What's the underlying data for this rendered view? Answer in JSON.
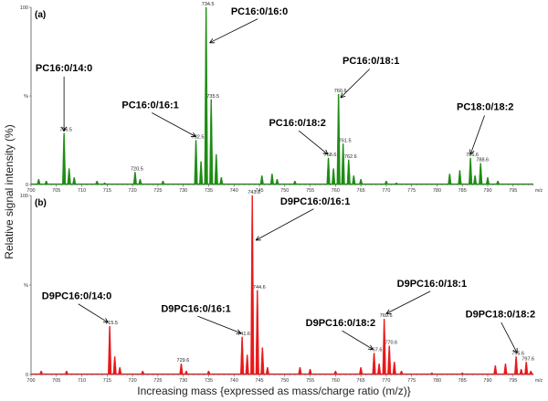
{
  "ylabel": "Relative signal intensity (%)",
  "xlabel": "Increasing mass {expressed as mass/charge ratio (m/z)}",
  "chart_data": [
    {
      "type": "line",
      "panel": "(a)",
      "color": "#1e8c14",
      "xlim": [
        700,
        799
      ],
      "ylim": [
        0,
        100
      ],
      "x_ticks": [
        700,
        705,
        710,
        715,
        720,
        725,
        730,
        735,
        740,
        745,
        750,
        755,
        760,
        765,
        770,
        775,
        780,
        785,
        790,
        795
      ],
      "y_ticks": [
        "0",
        "%",
        "100"
      ],
      "x_unit": "m/z",
      "peaks": [
        {
          "x": 701.5,
          "y": 3
        },
        {
          "x": 703.0,
          "y": 2
        },
        {
          "x": 706.5,
          "y": 29
        },
        {
          "x": 707.5,
          "y": 9
        },
        {
          "x": 708.5,
          "y": 4
        },
        {
          "x": 713.0,
          "y": 2
        },
        {
          "x": 714.5,
          "y": 1
        },
        {
          "x": 720.5,
          "y": 7
        },
        {
          "x": 721.5,
          "y": 3
        },
        {
          "x": 726.0,
          "y": 2
        },
        {
          "x": 732.5,
          "y": 25
        },
        {
          "x": 733.5,
          "y": 13
        },
        {
          "x": 734.5,
          "y": 100
        },
        {
          "x": 735.5,
          "y": 48
        },
        {
          "x": 736.5,
          "y": 17
        },
        {
          "x": 737.5,
          "y": 4
        },
        {
          "x": 745.5,
          "y": 5
        },
        {
          "x": 747.5,
          "y": 6
        },
        {
          "x": 748.5,
          "y": 3
        },
        {
          "x": 752.0,
          "y": 2
        },
        {
          "x": 758.6,
          "y": 15
        },
        {
          "x": 759.6,
          "y": 9
        },
        {
          "x": 760.6,
          "y": 51
        },
        {
          "x": 761.5,
          "y": 23
        },
        {
          "x": 762.6,
          "y": 14
        },
        {
          "x": 763.6,
          "y": 5
        },
        {
          "x": 765.0,
          "y": 3
        },
        {
          "x": 770.0,
          "y": 2
        },
        {
          "x": 772.0,
          "y": 1
        },
        {
          "x": 782.5,
          "y": 6
        },
        {
          "x": 784.5,
          "y": 8
        },
        {
          "x": 786.6,
          "y": 15
        },
        {
          "x": 787.5,
          "y": 5
        },
        {
          "x": 788.6,
          "y": 12
        },
        {
          "x": 790.0,
          "y": 4
        },
        {
          "x": 792.0,
          "y": 2
        }
      ],
      "peak_labels": [
        {
          "x": 706.5,
          "y": 29,
          "text": "706.5"
        },
        {
          "x": 720.5,
          "y": 7,
          "text": "720.5"
        },
        {
          "x": 732.5,
          "y": 25,
          "text": "732.5"
        },
        {
          "x": 734.5,
          "y": 100,
          "text": "734.5"
        },
        {
          "x": 735.5,
          "y": 48,
          "text": "735.5"
        },
        {
          "x": 758.6,
          "y": 15,
          "text": "758.6"
        },
        {
          "x": 760.6,
          "y": 51,
          "text": "760.6"
        },
        {
          "x": 761.5,
          "y": 23,
          "text": "761.5"
        },
        {
          "x": 762.6,
          "y": 14,
          "text": "762.6"
        },
        {
          "x": 786.6,
          "y": 15,
          "text": "786.6"
        },
        {
          "x": 788.6,
          "y": 12,
          "text": "788.6"
        }
      ],
      "annotations": [
        {
          "text": "PC16:0/14:0",
          "target_x": 706.5,
          "target_y": 30,
          "label_x": 706.5,
          "label_y": 64
        },
        {
          "text": "PC16:0/16:1",
          "target_x": 732.5,
          "target_y": 27,
          "label_x": 723.5,
          "label_y": 43
        },
        {
          "text": "PC16:0/16:0",
          "target_x": 735.2,
          "target_y": 80,
          "label_x": 745.0,
          "label_y": 96
        },
        {
          "text": "PC16:0/18:2",
          "target_x": 758.5,
          "target_y": 17,
          "label_x": 752.5,
          "label_y": 33
        },
        {
          "text": "PC16:0/18:1",
          "target_x": 761.0,
          "target_y": 49,
          "label_x": 767.0,
          "label_y": 68
        },
        {
          "text": "PC18:0/18:2",
          "target_x": 786.6,
          "target_y": 17,
          "label_x": 789.5,
          "label_y": 42
        }
      ]
    },
    {
      "type": "line",
      "panel": "(b)",
      "color": "#e8181a",
      "xlim": [
        700,
        799
      ],
      "ylim": [
        0,
        100
      ],
      "x_ticks": [
        700,
        705,
        710,
        715,
        720,
        725,
        730,
        735,
        740,
        745,
        750,
        755,
        760,
        765,
        770,
        775,
        780,
        785,
        790,
        795
      ],
      "y_ticks": [
        "0",
        "%",
        "100"
      ],
      "x_unit": "m/z",
      "peaks": [
        {
          "x": 702.0,
          "y": 2
        },
        {
          "x": 707.0,
          "y": 2
        },
        {
          "x": 715.5,
          "y": 27
        },
        {
          "x": 716.5,
          "y": 10
        },
        {
          "x": 717.5,
          "y": 4
        },
        {
          "x": 722.0,
          "y": 2
        },
        {
          "x": 729.6,
          "y": 6
        },
        {
          "x": 730.6,
          "y": 2
        },
        {
          "x": 735.0,
          "y": 2
        },
        {
          "x": 741.6,
          "y": 21
        },
        {
          "x": 742.6,
          "y": 11
        },
        {
          "x": 743.6,
          "y": 100
        },
        {
          "x": 744.6,
          "y": 47
        },
        {
          "x": 745.6,
          "y": 15
        },
        {
          "x": 746.6,
          "y": 4
        },
        {
          "x": 753.0,
          "y": 4
        },
        {
          "x": 755.0,
          "y": 3
        },
        {
          "x": 760.0,
          "y": 2
        },
        {
          "x": 765.0,
          "y": 4
        },
        {
          "x": 767.6,
          "y": 12
        },
        {
          "x": 768.6,
          "y": 6
        },
        {
          "x": 769.6,
          "y": 31
        },
        {
          "x": 770.6,
          "y": 16
        },
        {
          "x": 771.6,
          "y": 7
        },
        {
          "x": 773.0,
          "y": 2
        },
        {
          "x": 779.0,
          "y": 1
        },
        {
          "x": 785.0,
          "y": 1
        },
        {
          "x": 791.5,
          "y": 5
        },
        {
          "x": 793.5,
          "y": 6
        },
        {
          "x": 795.6,
          "y": 10
        },
        {
          "x": 796.6,
          "y": 3
        },
        {
          "x": 797.6,
          "y": 7
        },
        {
          "x": 798.5,
          "y": 2
        }
      ],
      "peak_labels": [
        {
          "x": 715.5,
          "y": 27,
          "text": "715.5"
        },
        {
          "x": 729.6,
          "y": 6,
          "text": "729.6"
        },
        {
          "x": 741.6,
          "y": 21,
          "text": "741.6"
        },
        {
          "x": 743.6,
          "y": 100,
          "text": "743.6"
        },
        {
          "x": 744.6,
          "y": 47,
          "text": "744.6"
        },
        {
          "x": 767.6,
          "y": 12,
          "text": "767.6"
        },
        {
          "x": 769.6,
          "y": 31,
          "text": "769.6"
        },
        {
          "x": 770.6,
          "y": 16,
          "text": "770.6"
        },
        {
          "x": 795.6,
          "y": 10,
          "text": "795.6"
        },
        {
          "x": 797.6,
          "y": 7,
          "text": "797.6"
        }
      ],
      "annotations": [
        {
          "text": "D9PC16:0/14:0",
          "target_x": 715.2,
          "target_y": 29,
          "label_x": 709.0,
          "label_y": 42
        },
        {
          "text": "D9PC16:0/16:1",
          "target_x": 741.4,
          "target_y": 23,
          "label_x": 732.5,
          "label_y": 35
        },
        {
          "text": "D9PC16:0/16:1",
          "target_x": 744.3,
          "target_y": 75,
          "label_x": 756.0,
          "label_y": 95
        },
        {
          "text": "D9PC16:0/18:2",
          "target_x": 767.4,
          "target_y": 14,
          "label_x": 761.0,
          "label_y": 27
        },
        {
          "text": "D9PC16:0/18:1",
          "target_x": 770.0,
          "target_y": 34,
          "label_x": 779.0,
          "label_y": 49
        },
        {
          "text": "D9PC18:0/18:2",
          "target_x": 795.8,
          "target_y": 12,
          "label_x": 792.5,
          "label_y": 32
        }
      ]
    }
  ]
}
